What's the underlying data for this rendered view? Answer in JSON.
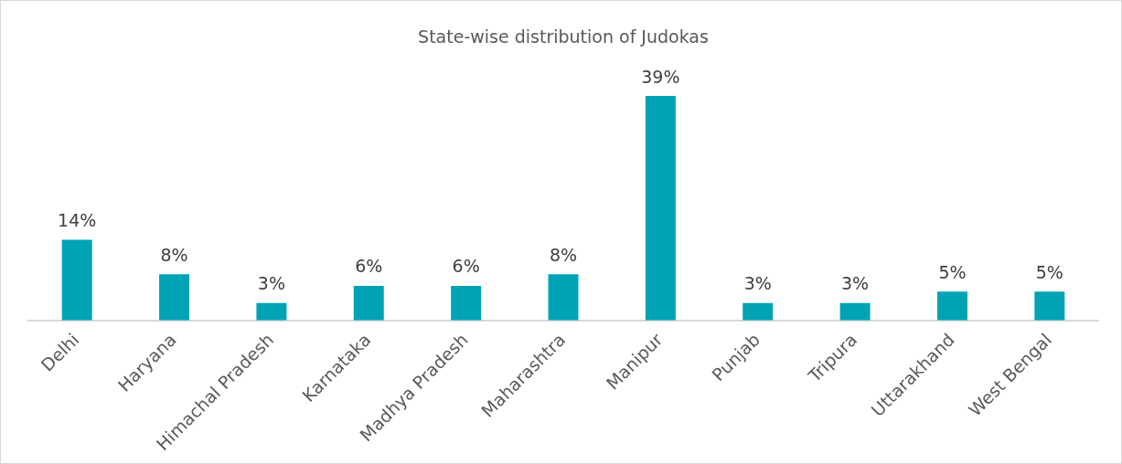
{
  "chart_data": {
    "type": "bar",
    "title": "State-wise distribution of Judokas",
    "categories": [
      "Delhi",
      "Haryana",
      "Himachal Pradesh",
      "Karnataka",
      "Madhya Pradesh",
      "Maharashtra",
      "Manipur",
      "Punjab",
      "Tripura",
      "Uttarakhand",
      "West Bengal"
    ],
    "values": [
      14,
      8,
      3,
      6,
      6,
      8,
      39,
      3,
      3,
      5,
      5
    ],
    "value_labels": [
      "14%",
      "8%",
      "3%",
      "6%",
      "6%",
      "8%",
      "39%",
      "3%",
      "3%",
      "5%",
      "5%"
    ],
    "color": "#00a3b4",
    "grid": false,
    "legend": false
  }
}
